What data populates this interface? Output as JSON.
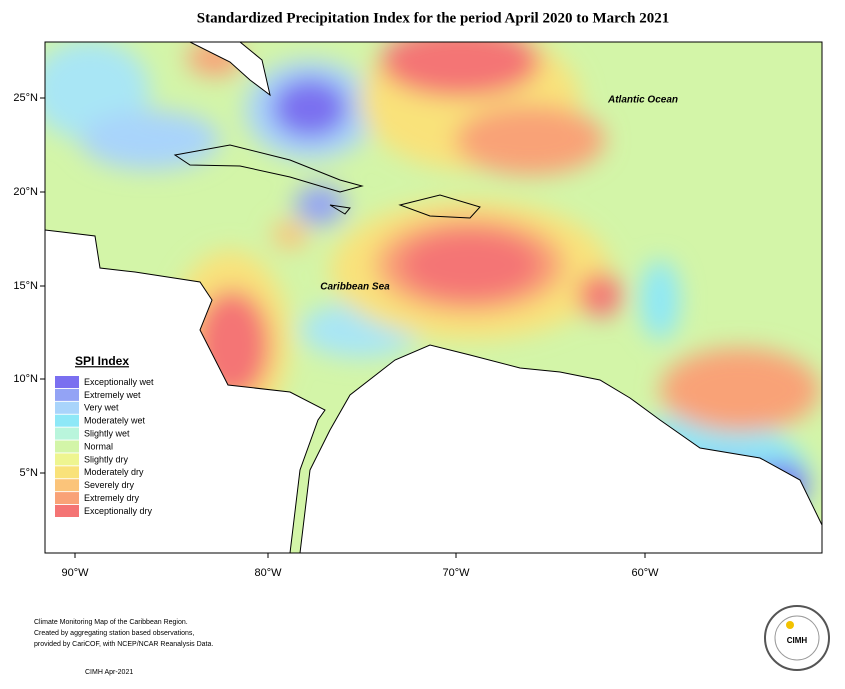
{
  "title": "Standardized Precipitation Index for the period April 2020 to March 2021",
  "map_labels": {
    "atlantic": "Atlantic Ocean",
    "caribbean": "Caribbean Sea"
  },
  "lat_ticks": [
    "25°N",
    "20°N",
    "15°N",
    "10°N",
    "5°N"
  ],
  "lon_ticks": [
    "90°W",
    "80°W",
    "70°W",
    "60°W"
  ],
  "legend": {
    "title": "SPI Index",
    "items": [
      {
        "label": "Exceptionally wet",
        "color": "#7a6ff0"
      },
      {
        "label": "Extremely wet",
        "color": "#93a3f5"
      },
      {
        "label": "Very wet",
        "color": "#a9d4fb"
      },
      {
        "label": "Moderately wet",
        "color": "#8ee8f7"
      },
      {
        "label": "Slightly wet",
        "color": "#b9f5dc"
      },
      {
        "label": "Normal",
        "color": "#d3f5a8"
      },
      {
        "label": "Slightly dry",
        "color": "#eef590"
      },
      {
        "label": "Moderately dry",
        "color": "#f9e27a"
      },
      {
        "label": "Severely dry",
        "color": "#fbc47a"
      },
      {
        "label": "Extremely dry",
        "color": "#f9a277"
      },
      {
        "label": "Exceptionally dry",
        "color": "#f47474"
      }
    ]
  },
  "footer": {
    "lines": [
      "Climate Monitoring Map of the Caribbean Region.",
      "Created by aggregating station based observations,",
      "provided by CariCOF, with NCEP/NCAR Reanalysis Data."
    ],
    "credit": "CIMH Apr-2021"
  },
  "logo": "CIMH"
}
